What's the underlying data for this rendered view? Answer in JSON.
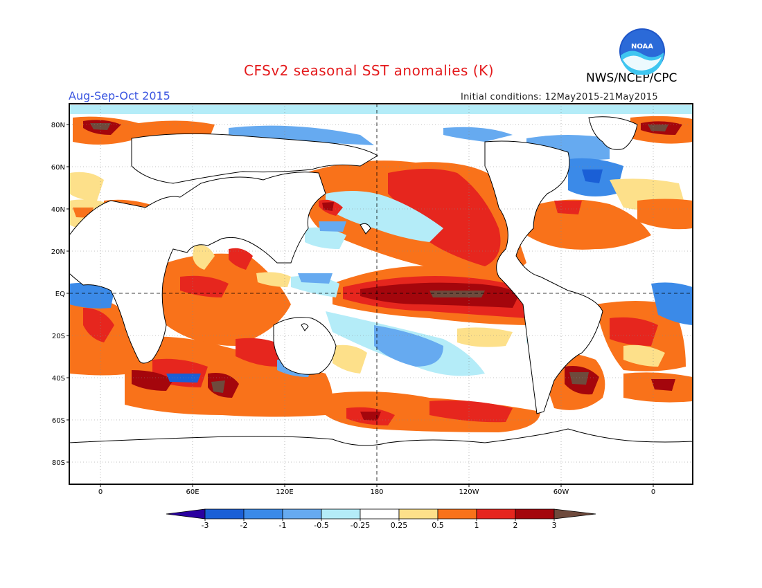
{
  "header": {
    "title": "CFSv2 seasonal SST anomalies (K)",
    "period": "Aug-Sep-Oct 2015",
    "initial_conditions": "Initial conditions: 12May2015-21May2015",
    "agency": "NWS/NCEP/CPC",
    "logo_text": "NOAA"
  },
  "map": {
    "projection": "cylindrical equidistant",
    "lat_labels": [
      "80N",
      "60N",
      "40N",
      "20N",
      "EQ",
      "20S",
      "40S",
      "60S",
      "80S"
    ],
    "lon_labels": [
      "0",
      "60E",
      "120E",
      "180",
      "120W",
      "60W",
      "0"
    ],
    "center_lines": [
      "EQ",
      "180"
    ]
  },
  "colorbar": {
    "tick_labels": [
      "-3",
      "-2",
      "-1",
      "-0.5",
      "-0.25",
      "0.25",
      "0.5",
      "1",
      "2",
      "3"
    ],
    "colors": [
      "#2a00a0",
      "#1a5fd6",
      "#3b8ae8",
      "#66aaf0",
      "#b4ecf8",
      "#ffffff",
      "#fde08a",
      "#f9721a",
      "#e6261e",
      "#a4060c",
      "#6e4a3c"
    ]
  }
}
